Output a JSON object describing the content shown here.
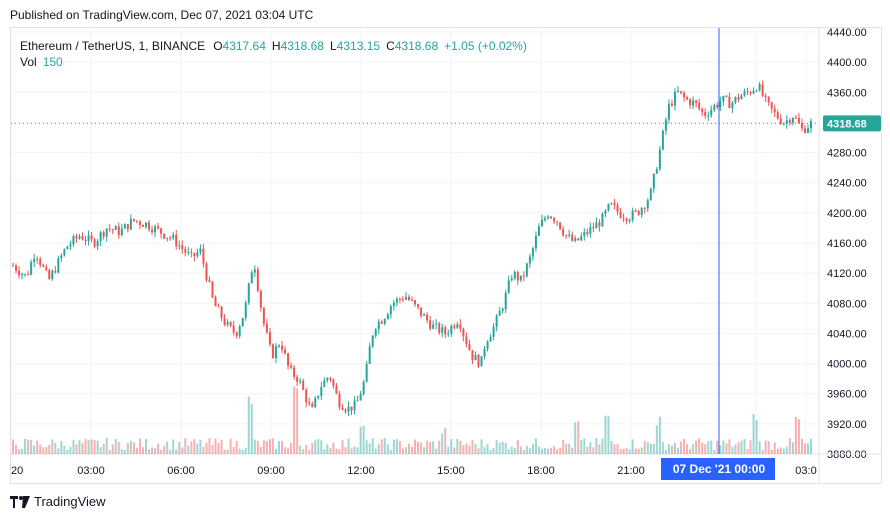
{
  "header": {
    "published": "Published on TradingView.com, Dec 07, 2021 03:04 UTC"
  },
  "legend": {
    "symbol": "Ethereum / TetherUS, 1, BINANCE",
    "open_label": "O",
    "open": "4317.64",
    "high_label": "H",
    "high": "4318.68",
    "low_label": "L",
    "low": "4313.15",
    "close_label": "C",
    "close": "4318.68",
    "change": "+1.05 (+0.02%)",
    "vol_label": "Vol",
    "vol_value": "150"
  },
  "footer": {
    "brand": "TradingView"
  },
  "colors": {
    "up": "#26a69a",
    "down": "#ef5350",
    "crosshair": "#2962ff",
    "grid": "#f0f3fa",
    "axis_text": "#131722"
  },
  "chart_data": {
    "type": "candlestick",
    "title": "Ethereum / TetherUS, 1, BINANCE",
    "y_axis": {
      "side": "right",
      "ylim": [
        3880,
        4440
      ],
      "ticks": [
        "4440.00",
        "4400.00",
        "4360.00",
        "4320.00",
        "4280.00",
        "4240.00",
        "4200.00",
        "4160.00",
        "4120.00",
        "4080.00",
        "4040.00",
        "4000.00",
        "3960.00",
        "3920.00",
        "3880.00"
      ]
    },
    "x_axis": {
      "ticks": [
        "20",
        "03:00",
        "06:00",
        "09:00",
        "12:00",
        "15:00",
        "18:00",
        "21:00",
        "00:00",
        "03:0"
      ]
    },
    "last_price": "4318.68",
    "crosshair_label": "07 Dec '21   00:00",
    "grid": true,
    "price_path": [
      [
        0,
        4130
      ],
      [
        3,
        4115
      ],
      [
        5,
        4150
      ],
      [
        8,
        4110
      ],
      [
        12,
        4155
      ],
      [
        15,
        4170
      ],
      [
        18,
        4160
      ],
      [
        21,
        4180
      ],
      [
        24,
        4175
      ],
      [
        27,
        4190
      ],
      [
        30,
        4185
      ],
      [
        33,
        4175
      ],
      [
        36,
        4165
      ],
      [
        40,
        4140
      ],
      [
        42,
        4150
      ],
      [
        45,
        4080
      ],
      [
        48,
        4050
      ],
      [
        50,
        4040
      ],
      [
        52,
        4070
      ],
      [
        54,
        4140
      ],
      [
        56,
        4060
      ],
      [
        58,
        4010
      ],
      [
        60,
        4030
      ],
      [
        62,
        3990
      ],
      [
        64,
        3980
      ],
      [
        66,
        3950
      ],
      [
        67,
        3935
      ],
      [
        69,
        3970
      ],
      [
        71,
        3985
      ],
      [
        73,
        3950
      ],
      [
        75,
        3940
      ],
      [
        77,
        3945
      ],
      [
        79,
        3980
      ],
      [
        80,
        4020
      ],
      [
        81,
        4050
      ],
      [
        83,
        4060
      ],
      [
        85,
        4080
      ],
      [
        88,
        4090
      ],
      [
        91,
        4070
      ],
      [
        94,
        4050
      ],
      [
        97,
        4040
      ],
      [
        100,
        4060
      ],
      [
        101,
        4040
      ],
      [
        103,
        4010
      ],
      [
        105,
        4000
      ],
      [
        106,
        4030
      ],
      [
        108,
        4050
      ],
      [
        110,
        4080
      ],
      [
        112,
        4120
      ],
      [
        114,
        4110
      ],
      [
        116,
        4140
      ],
      [
        118,
        4180
      ],
      [
        120,
        4200
      ],
      [
        122,
        4190
      ],
      [
        124,
        4170
      ],
      [
        126,
        4160
      ],
      [
        128,
        4170
      ],
      [
        130,
        4180
      ],
      [
        132,
        4190
      ],
      [
        134,
        4210
      ],
      [
        136,
        4200
      ],
      [
        138,
        4195
      ],
      [
        140,
        4200
      ],
      [
        142,
        4215
      ],
      [
        143,
        4225
      ],
      [
        145,
        4280
      ],
      [
        147,
        4340
      ],
      [
        149,
        4360
      ],
      [
        151,
        4350
      ],
      [
        153,
        4345
      ],
      [
        155,
        4330
      ],
      [
        157,
        4340
      ],
      [
        159,
        4350
      ],
      [
        161,
        4345
      ],
      [
        163,
        4355
      ],
      [
        165,
        4360
      ],
      [
        167,
        4370
      ],
      [
        169,
        4345
      ],
      [
        171,
        4330
      ],
      [
        173,
        4320
      ],
      [
        175,
        4330
      ],
      [
        177,
        4310
      ],
      [
        179,
        4318.68
      ]
    ],
    "volume_spikes": [
      [
        0.295,
        62
      ],
      [
        0.352,
        78
      ],
      [
        0.435,
        30
      ],
      [
        0.538,
        28
      ],
      [
        0.705,
        36
      ],
      [
        0.74,
        42
      ],
      [
        0.805,
        38
      ],
      [
        0.925,
        45
      ],
      [
        0.98,
        40
      ]
    ]
  }
}
